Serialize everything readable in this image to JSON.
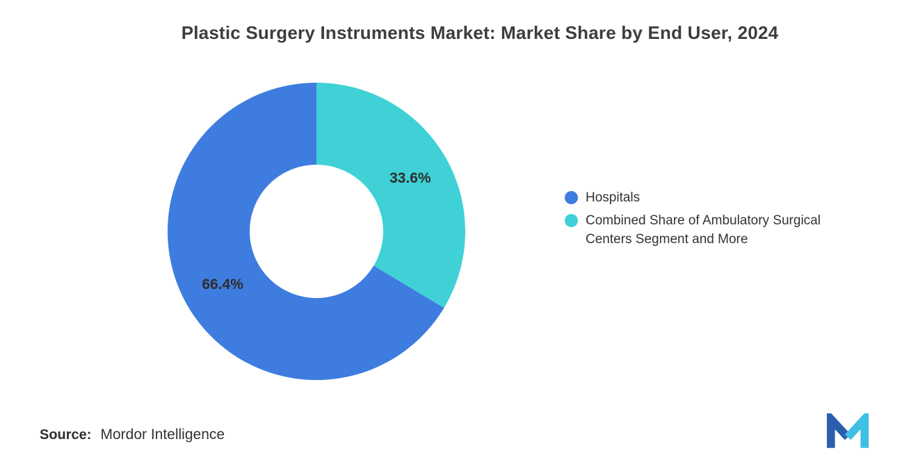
{
  "title": "Plastic Surgery Instruments Market: Market Share by End User, 2024",
  "source": {
    "label": "Source:",
    "value": "Mordor Intelligence"
  },
  "logo": {
    "name": "mordor-intelligence-logo",
    "primary_color": "#2B5FAE",
    "secondary_color": "#3FBFE4"
  },
  "chart_data": {
    "type": "pie",
    "variant": "donut",
    "title": "Plastic Surgery Instruments Market: Market Share by End User, 2024",
    "unit": "%",
    "direction": "counterclockwise",
    "start_angle_deg": 0,
    "legend_position": "right",
    "background": "#ffffff",
    "slices": [
      {
        "label": "Hospitals",
        "value": 66.4,
        "data_label": "66.4%",
        "color": "#3E7CDF"
      },
      {
        "label": "Combined Share of Ambulatory Surgical Centers Segment and More",
        "value": 33.6,
        "data_label": "33.6%",
        "color": "#3FD1D6"
      }
    ]
  }
}
